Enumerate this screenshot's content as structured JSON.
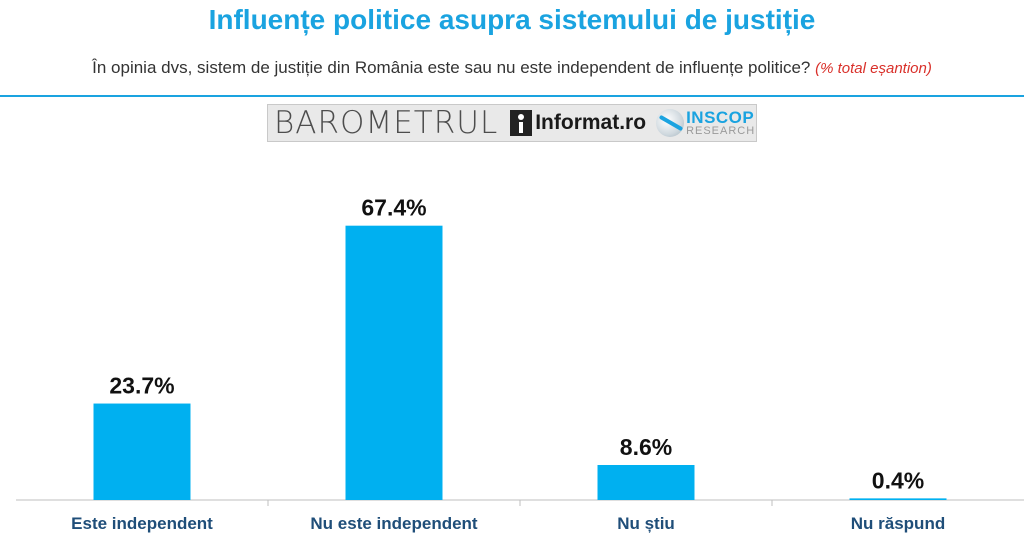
{
  "chart_data": {
    "type": "bar",
    "title": "Influențe politice asupra sistemului de justiție",
    "subtitle": "În opinia dvs, sistem de justiție din România este sau nu este independent de influențe politice?",
    "subtitle_note": "(% total eșantion)",
    "categories": [
      "Este independent",
      "Nu este independent",
      "Nu știu",
      "Nu răspund"
    ],
    "values": [
      23.7,
      67.4,
      8.6,
      0.4
    ],
    "value_labels": [
      "23.7%",
      "67.4%",
      "8.6%",
      "0.4%"
    ],
    "ylim": [
      0,
      100
    ],
    "grid": false,
    "bar_color": "#00b0f0",
    "accent_color": "#1aa3e0",
    "category_label_color": "#1f4e79"
  },
  "logos": {
    "barometrul": "BAROMETRUL",
    "informat": "Informat.ro",
    "inscop_top": "INSCOP",
    "inscop_bottom": "RESEARCH"
  }
}
